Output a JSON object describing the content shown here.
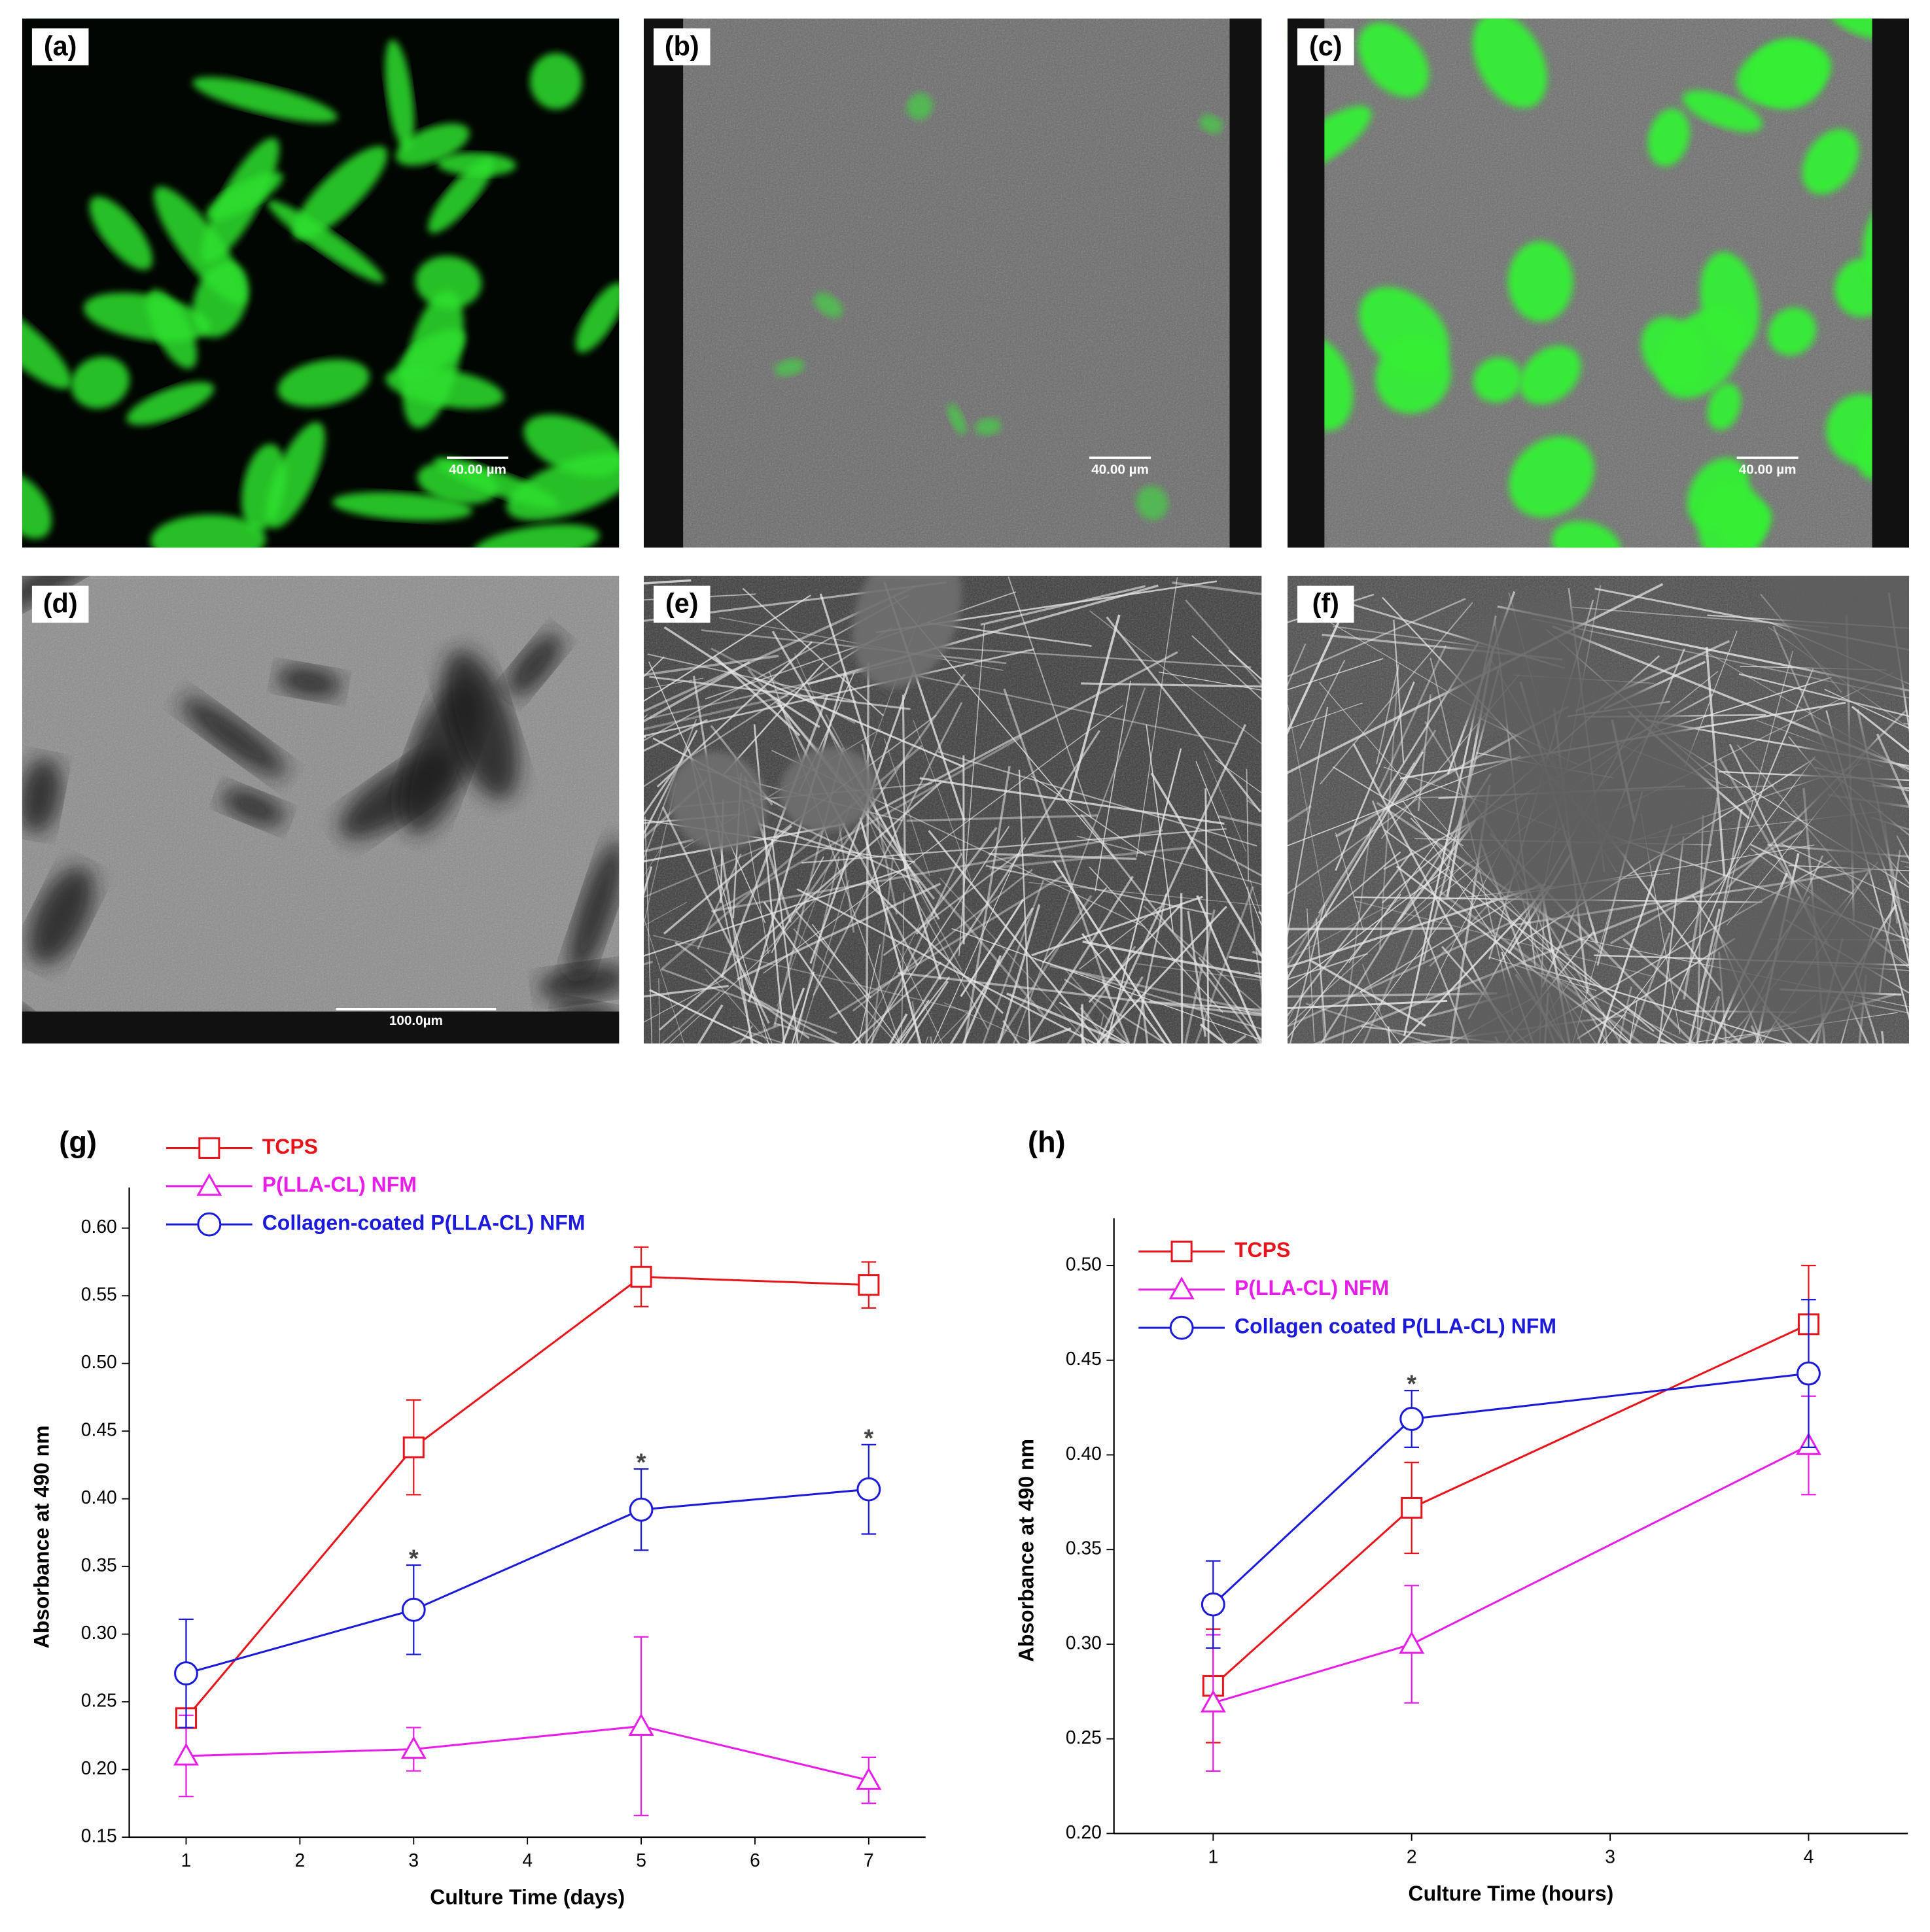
{
  "panels": [
    {
      "label": "(a)",
      "scale_bar": "40.00 µm"
    },
    {
      "label": "(b)",
      "scale_bar": "40.00 µm"
    },
    {
      "label": "(c)",
      "scale_bar": "40.00 µm"
    },
    {
      "label": "(d)",
      "scale_bar": "100.0µm"
    },
    {
      "label": "(e)"
    },
    {
      "label": "(f)"
    }
  ],
  "chart_data": [
    {
      "type": "line",
      "title": "(g)",
      "x_label": "Culture Time (days)",
      "y_label": "Absorbance at 490 nm",
      "x": [
        1,
        3,
        5,
        7
      ],
      "xlim": [
        0.5,
        7.5
      ],
      "xticks": [
        1,
        2,
        3,
        4,
        5,
        6,
        7
      ],
      "ylim": [
        0.15,
        0.63
      ],
      "yticks": [
        0.15,
        {
          "value": 0.2,
          "label": "0.20"
        },
        0.25,
        {
          "value": 0.3,
          "label": "0.30"
        },
        0.35,
        {
          "value": 0.4,
          "label": "0.40"
        },
        0.45,
        {
          "value": 0.5,
          "label": "0.50"
        },
        0.55,
        {
          "value": 0.6,
          "label": "0.60"
        }
      ],
      "legend": "upper left",
      "series": [
        {
          "name": "TCPS",
          "color": "#e8141b",
          "marker": "square",
          "values": [
            0.238,
            0.438,
            0.564,
            0.558
          ],
          "errors": [
            0.004,
            0.035,
            0.022,
            0.017
          ]
        },
        {
          "name": "P(LLA-CL) NFM",
          "color": "#e81ee8",
          "marker": "triangle",
          "values": [
            0.21,
            0.215,
            0.232,
            0.192
          ],
          "errors": [
            0.03,
            0.016,
            0.066,
            0.017
          ]
        },
        {
          "name": "Collagen-coated P(LLA-CL) NFM",
          "color": "#1a1ad8",
          "marker": "circle",
          "values": [
            0.271,
            0.318,
            0.392,
            0.407
          ],
          "errors": [
            0.04,
            0.033,
            0.03,
            0.033
          ]
        }
      ],
      "annotations": [
        {
          "text": "*",
          "x": 3
        },
        {
          "text": "*",
          "x": 5
        },
        {
          "text": "*",
          "x": 7
        }
      ]
    },
    {
      "type": "line",
      "title": "(h)",
      "x_label": "Culture Time (hours)",
      "y_label": "Absorbance at 490 nm",
      "x": [
        1,
        2,
        4
      ],
      "xlim": [
        0.5,
        4.5
      ],
      "xticks": [
        1,
        2,
        3,
        4
      ],
      "ylim": [
        0.2,
        0.525
      ],
      "yticks": [
        {
          "value": 0.2,
          "label": "0.20"
        },
        0.25,
        {
          "value": 0.3,
          "label": "0.30"
        },
        0.35,
        {
          "value": 0.4,
          "label": "0.40"
        },
        0.45,
        {
          "value": 0.5,
          "label": "0.50"
        }
      ],
      "legend": "upper left",
      "series": [
        {
          "name": "TCPS",
          "color": "#e8141b",
          "marker": "square",
          "values": [
            0.278,
            0.372,
            0.469
          ],
          "errors": [
            0.03,
            0.024,
            0.031
          ]
        },
        {
          "name": "P(LLA-CL) NFM",
          "color": "#e81ee8",
          "marker": "triangle",
          "values": [
            0.269,
            0.3,
            0.405
          ],
          "errors": [
            0.036,
            0.031,
            0.026
          ]
        },
        {
          "name": "Collagen coated P(LLA-CL) NFM",
          "color": "#1a1ad8",
          "marker": "circle",
          "values": [
            0.321,
            0.419,
            0.443
          ],
          "errors": [
            0.023,
            0.015,
            0.039
          ]
        }
      ],
      "annotations": [
        {
          "text": "*",
          "x": 2
        }
      ]
    }
  ]
}
